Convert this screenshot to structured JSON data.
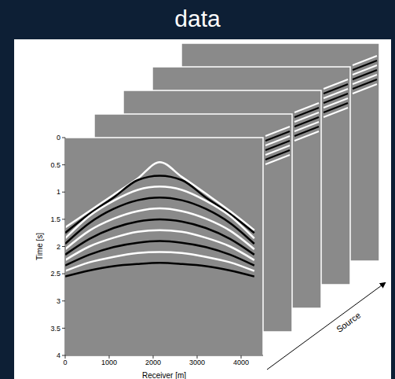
{
  "chart_data": {
    "type": "line",
    "title": "data",
    "x_label": "Receiver [m]",
    "y_label": "Time [s]",
    "depth_label": "Source",
    "x": [
      0,
      550,
      1100,
      1650,
      2150,
      2650,
      3200,
      3750,
      4300
    ],
    "xlim": [
      0,
      4500
    ],
    "xticks": [
      0,
      1000,
      2000,
      3000,
      4000
    ],
    "ylim": [
      0,
      4
    ],
    "yticks": [
      0,
      0.5,
      1,
      1.5,
      2,
      2.5,
      3,
      3.5,
      4
    ],
    "grid": false,
    "series": [
      {
        "color": "#ffffff",
        "values": [
          1.65,
          1.35,
          1.05,
          0.75,
          0.45,
          0.72,
          1.03,
          1.35,
          1.7
        ]
      },
      {
        "color": "#000000",
        "values": [
          1.75,
          1.4,
          1.1,
          0.78,
          0.7,
          0.78,
          1.1,
          1.4,
          1.75
        ]
      },
      {
        "color": "#ffffff",
        "values": [
          1.85,
          1.44,
          1.16,
          0.96,
          0.9,
          0.96,
          1.16,
          1.44,
          1.85
        ]
      },
      {
        "color": "#000000",
        "values": [
          1.95,
          1.57,
          1.31,
          1.15,
          1.1,
          1.15,
          1.31,
          1.57,
          1.95
        ]
      },
      {
        "color": "#ffffff",
        "values": [
          2.05,
          1.71,
          1.49,
          1.35,
          1.3,
          1.35,
          1.49,
          1.71,
          2.05
        ]
      },
      {
        "color": "#000000",
        "values": [
          2.15,
          1.86,
          1.66,
          1.54,
          1.5,
          1.54,
          1.66,
          1.86,
          2.15
        ]
      },
      {
        "color": "#ffffff",
        "values": [
          2.25,
          2.0,
          1.84,
          1.73,
          1.7,
          1.73,
          1.84,
          2.0,
          2.25
        ]
      },
      {
        "color": "#000000",
        "values": [
          2.35,
          2.15,
          2.01,
          1.93,
          1.9,
          1.93,
          2.01,
          2.15,
          2.35
        ]
      },
      {
        "color": "#ffffff",
        "values": [
          2.45,
          2.29,
          2.19,
          2.12,
          2.1,
          2.12,
          2.19,
          2.29,
          2.45
        ]
      },
      {
        "color": "#000000",
        "values": [
          2.55,
          2.44,
          2.36,
          2.32,
          2.3,
          2.32,
          2.36,
          2.44,
          2.55
        ]
      }
    ]
  }
}
